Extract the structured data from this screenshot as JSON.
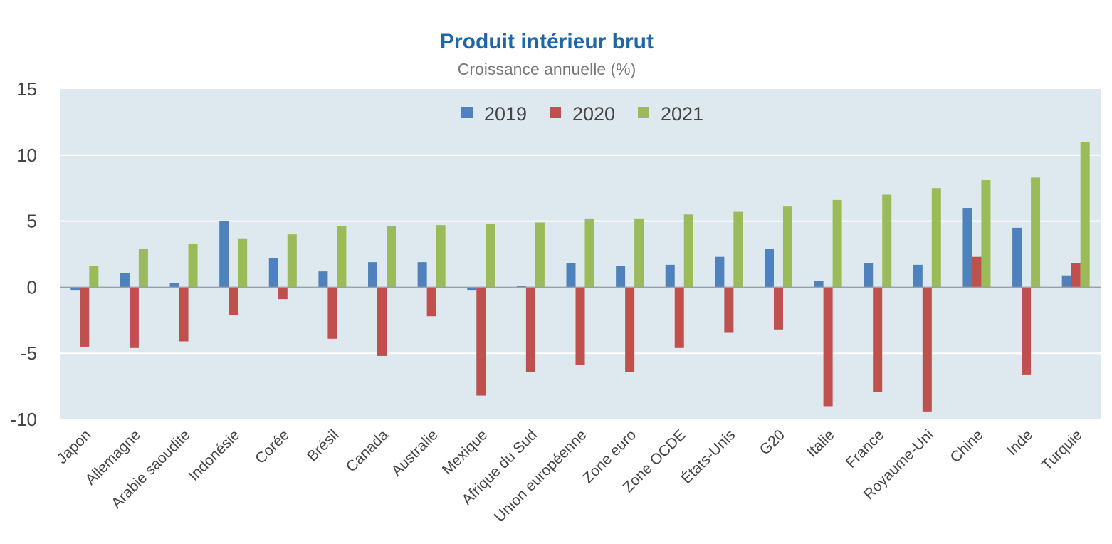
{
  "chart_data": {
    "type": "bar",
    "title": "Produit intérieur brut",
    "subtitle": "Croissance annuelle (%)",
    "xlabel": "",
    "ylabel": "",
    "ylim": [
      -10,
      15
    ],
    "yticks": [
      15,
      10,
      5,
      0,
      -5,
      -10
    ],
    "grid": true,
    "legend_position": "top-center",
    "colors": {
      "plot_background": "#DDE8EF",
      "grid": "#ffffff",
      "axis": "#9aa0a6"
    },
    "categories": [
      "Japon",
      "Allemagne",
      "Arabie saoudite",
      "Indonésie",
      "Corée",
      "Brésil",
      "Canada",
      "Australie",
      "Mexique",
      "Afrique du Sud",
      "Union européenne",
      "Zone euro",
      "Zone OCDE",
      "États-Unis",
      "G20",
      "Italie",
      "France",
      "Royaume-Uni",
      "Chine",
      "Inde",
      "Turquie"
    ],
    "series": [
      {
        "name": "2019",
        "color": "#4F81BD",
        "values": [
          -0.2,
          1.1,
          0.3,
          5.0,
          2.2,
          1.2,
          1.9,
          1.9,
          -0.2,
          0.1,
          1.8,
          1.6,
          1.7,
          2.3,
          2.9,
          0.5,
          1.8,
          1.7,
          6.0,
          4.5,
          0.9
        ]
      },
      {
        "name": "2020",
        "color": "#C0504D",
        "values": [
          -4.5,
          -4.6,
          -4.1,
          -2.1,
          -0.9,
          -3.9,
          -5.2,
          -2.2,
          -8.2,
          -6.4,
          -5.9,
          -6.4,
          -4.6,
          -3.4,
          -3.2,
          -9.0,
          -7.9,
          -9.4,
          2.3,
          -6.6,
          1.8
        ]
      },
      {
        "name": "2021",
        "color": "#9BBB59",
        "values": [
          1.6,
          2.9,
          3.3,
          3.7,
          4.0,
          4.6,
          4.6,
          4.7,
          4.8,
          4.9,
          5.2,
          5.2,
          5.5,
          5.7,
          6.1,
          6.6,
          7.0,
          7.5,
          8.1,
          8.3,
          11.0
        ]
      }
    ]
  }
}
